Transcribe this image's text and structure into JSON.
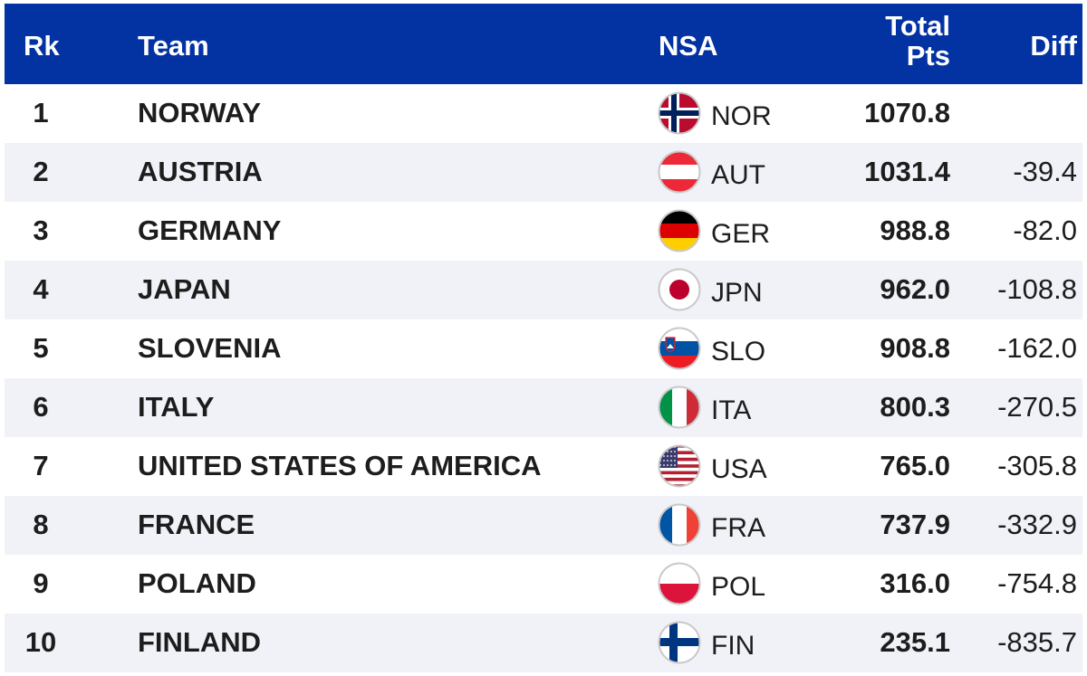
{
  "header": {
    "rank": "Rk",
    "team": "Team",
    "nsa": "NSA",
    "total_line1": "Total",
    "total_line2": "Pts",
    "diff": "Diff"
  },
  "rows": [
    {
      "rank": "1",
      "team": "NORWAY",
      "code": "NOR",
      "total": "1070.8",
      "diff": "",
      "flag": "norway-flag-icon"
    },
    {
      "rank": "2",
      "team": "AUSTRIA",
      "code": "AUT",
      "total": "1031.4",
      "diff": "-39.4",
      "flag": "austria-flag-icon"
    },
    {
      "rank": "3",
      "team": "GERMANY",
      "code": "GER",
      "total": "988.8",
      "diff": "-82.0",
      "flag": "germany-flag-icon"
    },
    {
      "rank": "4",
      "team": "JAPAN",
      "code": "JPN",
      "total": "962.0",
      "diff": "-108.8",
      "flag": "japan-flag-icon"
    },
    {
      "rank": "5",
      "team": "SLOVENIA",
      "code": "SLO",
      "total": "908.8",
      "diff": "-162.0",
      "flag": "slovenia-flag-icon"
    },
    {
      "rank": "6",
      "team": "ITALY",
      "code": "ITA",
      "total": "800.3",
      "diff": "-270.5",
      "flag": "italy-flag-icon"
    },
    {
      "rank": "7",
      "team": "UNITED STATES OF AMERICA",
      "code": "USA",
      "total": "765.0",
      "diff": "-305.8",
      "flag": "usa-flag-icon"
    },
    {
      "rank": "8",
      "team": "FRANCE",
      "code": "FRA",
      "total": "737.9",
      "diff": "-332.9",
      "flag": "france-flag-icon"
    },
    {
      "rank": "9",
      "team": "POLAND",
      "code": "POL",
      "total": "316.0",
      "diff": "-754.8",
      "flag": "poland-flag-icon"
    },
    {
      "rank": "10",
      "team": "FINLAND",
      "code": "FIN",
      "total": "235.1",
      "diff": "-835.7",
      "flag": "finland-flag-icon"
    }
  ],
  "colors": {
    "header_bg": "#0332a2",
    "header_text": "#ffffff",
    "alt_row_bg": "#f0f2f7",
    "text": "#1d1d1d"
  }
}
